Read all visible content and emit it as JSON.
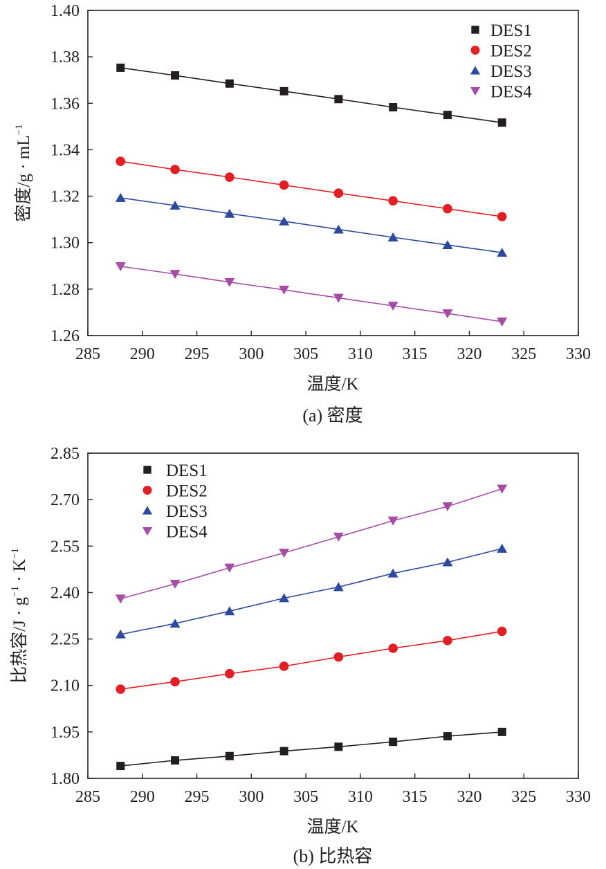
{
  "chart_data": [
    {
      "type": "line",
      "panel_caption": "(a) 密度",
      "xlabel": "温度/K",
      "ylabel_main": "密度/g · mL",
      "ylabel_sup": "−1",
      "xlim": [
        285,
        330
      ],
      "ylim": [
        1.26,
        1.4
      ],
      "xticks": [
        "285",
        "290",
        "295",
        "300",
        "305",
        "310",
        "315",
        "320",
        "325",
        "330"
      ],
      "yticks": [
        "1.26",
        "1.28",
        "1.30",
        "1.32",
        "1.34",
        "1.36",
        "1.38",
        "1.40"
      ],
      "legend_position": "top-right",
      "x": [
        288,
        293,
        298,
        303,
        308,
        313,
        318,
        323
      ],
      "series": [
        {
          "name": "DES1",
          "marker": "square",
          "color": "#231f20",
          "values": [
            1.3753,
            1.372,
            1.3685,
            1.3652,
            1.3618,
            1.3583,
            1.355,
            1.3517
          ]
        },
        {
          "name": "DES2",
          "marker": "circle",
          "color": "#e31e24",
          "values": [
            1.335,
            1.3315,
            1.3282,
            1.3248,
            1.3213,
            1.318,
            1.3146,
            1.3112
          ]
        },
        {
          "name": "DES3",
          "marker": "triangle-up",
          "color": "#2e4a9e",
          "values": [
            1.3193,
            1.316,
            1.3125,
            1.3092,
            1.3057,
            1.3023,
            1.299,
            1.2957
          ]
        },
        {
          "name": "DES4",
          "marker": "triangle-down",
          "color": "#a64ca6",
          "values": [
            1.2898,
            1.2865,
            1.283,
            1.2797,
            1.2762,
            1.2728,
            1.2695,
            1.266
          ]
        }
      ]
    },
    {
      "type": "line",
      "panel_caption": "(b) 比热容",
      "xlabel": "温度/K",
      "ylabel_main": "比热容/J · g",
      "ylabel_sup1": "−1",
      "ylabel_mid": " · K",
      "ylabel_sup2": "−1",
      "xlim": [
        285,
        330
      ],
      "ylim": [
        1.8,
        2.85
      ],
      "xticks": [
        "285",
        "290",
        "295",
        "300",
        "305",
        "310",
        "315",
        "320",
        "325",
        "330"
      ],
      "yticks": [
        "1.80",
        "1.95",
        "2.10",
        "2.25",
        "2.40",
        "2.55",
        "2.70",
        "2.85"
      ],
      "legend_position": "top-left",
      "x": [
        288,
        293,
        298,
        303,
        308,
        313,
        318,
        323
      ],
      "series": [
        {
          "name": "DES1",
          "marker": "square",
          "color": "#231f20",
          "values": [
            1.84,
            1.858,
            1.872,
            1.888,
            1.902,
            1.918,
            1.936,
            1.95
          ]
        },
        {
          "name": "DES2",
          "marker": "circle",
          "color": "#e31e24",
          "values": [
            2.088,
            2.112,
            2.138,
            2.162,
            2.192,
            2.22,
            2.245,
            2.275
          ]
        },
        {
          "name": "DES3",
          "marker": "triangle-up",
          "color": "#2e4a9e",
          "values": [
            2.265,
            2.3,
            2.34,
            2.382,
            2.418,
            2.462,
            2.498,
            2.542
          ]
        },
        {
          "name": "DES4",
          "marker": "triangle-down",
          "color": "#a64ca6",
          "values": [
            2.38,
            2.428,
            2.48,
            2.528,
            2.58,
            2.632,
            2.678,
            2.735
          ]
        }
      ]
    }
  ]
}
